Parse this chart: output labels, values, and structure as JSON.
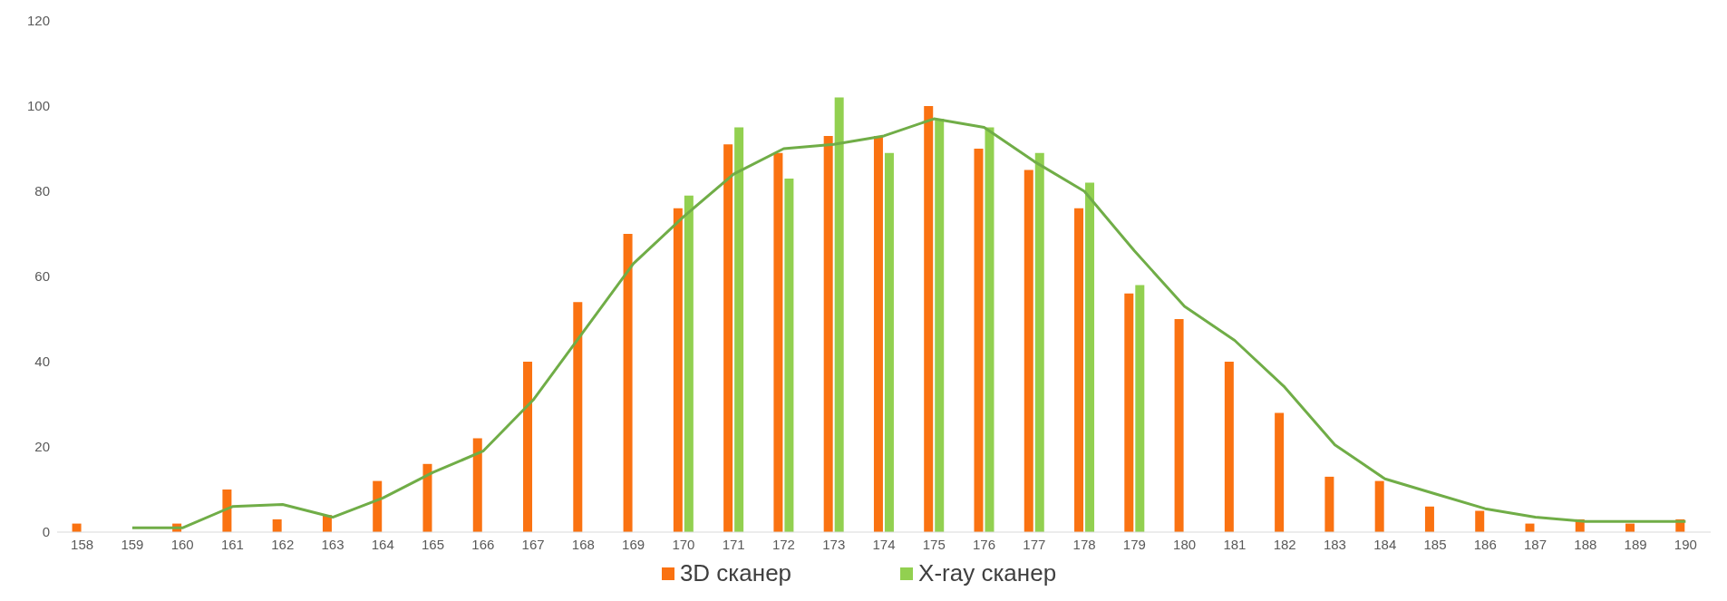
{
  "chart_data": {
    "type": "bar",
    "categories": [
      "158",
      "159",
      "160",
      "161",
      "162",
      "163",
      "164",
      "165",
      "166",
      "167",
      "168",
      "169",
      "170",
      "171",
      "172",
      "173",
      "174",
      "175",
      "176",
      "177",
      "178",
      "179",
      "180",
      "181",
      "182",
      "183",
      "184",
      "185",
      "186",
      "187",
      "188",
      "189",
      "190"
    ],
    "series": [
      {
        "name": "3D сканер",
        "color": "#fa7211",
        "values": [
          2,
          null,
          2,
          10,
          3,
          4,
          12,
          16,
          22,
          40,
          54,
          70,
          76,
          91,
          89,
          93,
          93,
          100,
          90,
          85,
          76,
          56,
          50,
          40,
          28,
          13,
          12,
          6,
          5,
          2,
          3,
          2,
          3
        ]
      },
      {
        "name": "X-ray сканер",
        "color": "#92d050",
        "values": [
          null,
          null,
          null,
          null,
          null,
          null,
          null,
          null,
          null,
          null,
          null,
          null,
          79,
          95,
          83,
          102,
          89,
          97,
          95,
          89,
          82,
          58,
          null,
          null,
          null,
          null,
          null,
          null,
          null,
          null,
          null,
          null,
          null
        ]
      },
      {
        "type": "line",
        "color": "#70ad47",
        "values": [
          null,
          1,
          1,
          6,
          6.5,
          3.5,
          8,
          14,
          19,
          31,
          47,
          63,
          74,
          84,
          90,
          91,
          93,
          97,
          95,
          87,
          80,
          66,
          53,
          45,
          34,
          20.5,
          12.5,
          9,
          5.5,
          3.5,
          2.5,
          2.5,
          2.5
        ]
      }
    ],
    "ylim": [
      0,
      120
    ],
    "yticks": [
      0,
      20,
      40,
      60,
      80,
      100,
      120
    ],
    "grid": false,
    "legend": "bottom",
    "marker": "none"
  }
}
